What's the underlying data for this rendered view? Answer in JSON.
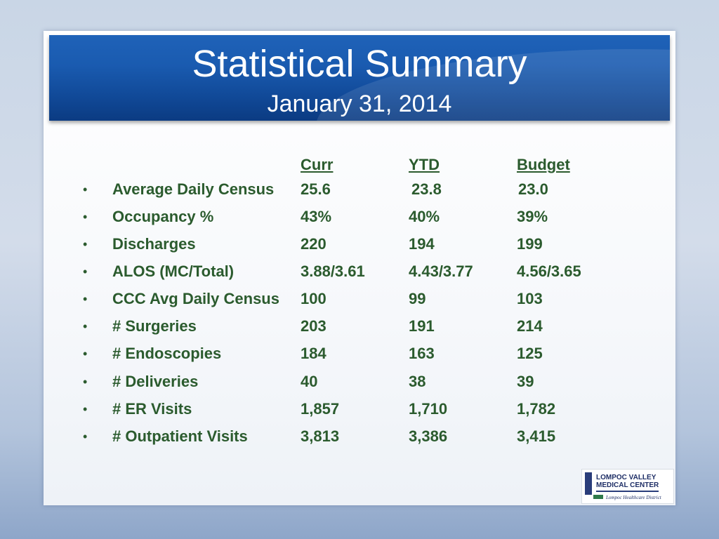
{
  "title": "Statistical Summary",
  "subtitle": "January 31, 2014",
  "columns": [
    "Curr",
    "YTD",
    "Budget"
  ],
  "bullet_char": "•",
  "rows": [
    {
      "label": "Average Daily Census",
      "curr": "25.6",
      "ytd": "23.8",
      "budget": "23.0"
    },
    {
      "label": "Occupancy %",
      "curr": "43%",
      "ytd": "40%",
      "budget": "39%"
    },
    {
      "label": "Discharges",
      "curr": "220",
      "ytd": "194",
      "budget": "199"
    },
    {
      "label": "ALOS (MC/Total)",
      "curr": "3.88/3.61",
      "ytd": "4.43/3.77",
      "budget": "4.56/3.65"
    },
    {
      "label": "CCC Avg Daily Census",
      "curr": "100",
      "ytd": "99",
      "budget": "103"
    },
    {
      "label": "# Surgeries",
      "curr": "203",
      "ytd": "191",
      "budget": "214"
    },
    {
      "label": "# Endoscopies",
      "curr": "184",
      "ytd": "163",
      "budget": "125"
    },
    {
      "label": "# Deliveries",
      "curr": "40",
      "ytd": "38",
      "budget": "39"
    },
    {
      "label": "# ER Visits",
      "curr": "1,857",
      "ytd": "1,710",
      "budget": "1,782"
    },
    {
      "label": "# Outpatient Visits",
      "curr": "3,813",
      "ytd": "3,386",
      "budget": "3,415"
    }
  ],
  "logo": {
    "line1": "LOMPOC VALLEY",
    "line2": "MEDICAL CENTER",
    "line3": "Lompoc Healthcare District"
  },
  "colors": {
    "title_bar": "#1a5bb0",
    "text_green": "#2b5b2e",
    "background": "#c9d6e6"
  }
}
